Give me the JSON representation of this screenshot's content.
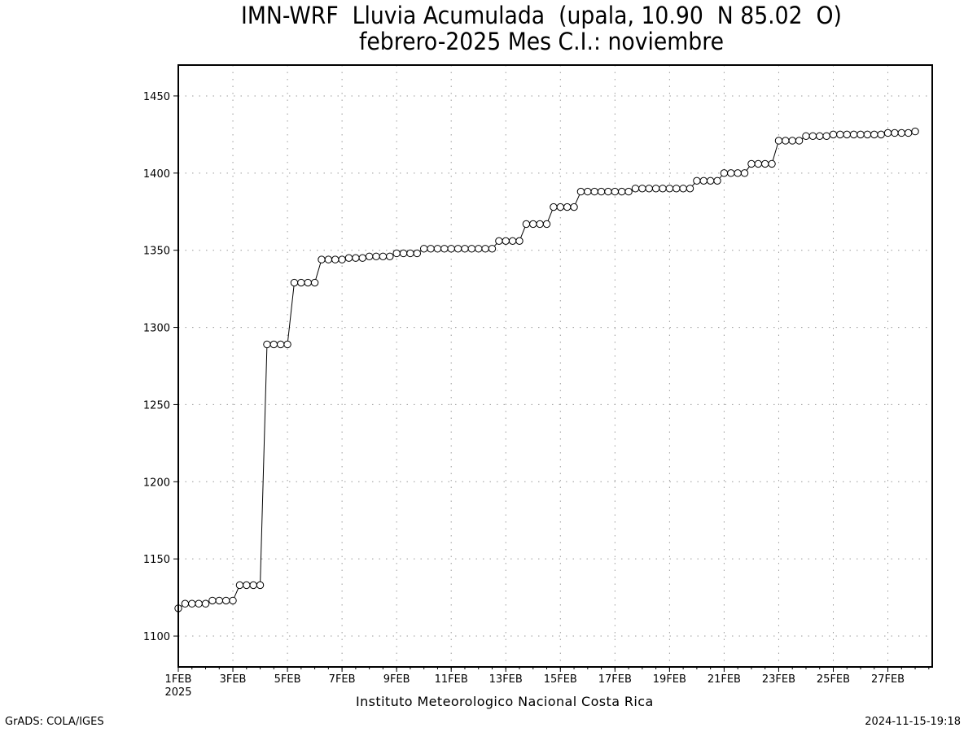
{
  "title_line1": "IMN-WRF  Lluvia Acumulada  (upala, 10.90  N 85.02  O)",
  "title_line2": "febrero-2025 Mes C.I.: noviembre",
  "footer_institution": "Instituto Meteorologico Nacional Costa Rica",
  "credit_left": "GrADS: COLA/IGES",
  "credit_right": "2024-11-15-19:18",
  "chart_data": {
    "type": "line",
    "marker": "open-circle",
    "ylim": [
      1080,
      1470
    ],
    "xlim": [
      1,
      28.625
    ],
    "yticks": [
      1100,
      1150,
      1200,
      1250,
      1300,
      1350,
      1400,
      1450
    ],
    "xticks": [
      {
        "day": 1,
        "label": "1FEB",
        "sublabel": "2025"
      },
      {
        "day": 3,
        "label": "3FEB"
      },
      {
        "day": 5,
        "label": "5FEB"
      },
      {
        "day": 7,
        "label": "7FEB"
      },
      {
        "day": 9,
        "label": "9FEB"
      },
      {
        "day": 11,
        "label": "11FEB"
      },
      {
        "day": 13,
        "label": "13FEB"
      },
      {
        "day": 15,
        "label": "15FEB"
      },
      {
        "day": 17,
        "label": "17FEB"
      },
      {
        "day": 19,
        "label": "19FEB"
      },
      {
        "day": 21,
        "label": "21FEB"
      },
      {
        "day": 23,
        "label": "23FEB"
      },
      {
        "day": 25,
        "label": "25FEB"
      },
      {
        "day": 27,
        "label": "27FEB"
      }
    ],
    "grid": true,
    "series": [
      {
        "day_start": 1,
        "step_days": 0.25,
        "values": [
          1118,
          1121,
          1121,
          1121,
          1121,
          1123,
          1123,
          1123,
          1123,
          1133,
          1133,
          1133,
          1133,
          1289,
          1289,
          1289,
          1289,
          1329,
          1329,
          1329,
          1329,
          1344,
          1344,
          1344,
          1344,
          1345,
          1345,
          1345,
          1346,
          1346,
          1346,
          1346,
          1348,
          1348,
          1348,
          1348,
          1351,
          1351,
          1351,
          1351,
          1351,
          1351,
          1351,
          1351,
          1351,
          1351,
          1351,
          1356,
          1356,
          1356,
          1356,
          1367,
          1367,
          1367,
          1367,
          1378,
          1378,
          1378,
          1378,
          1388,
          1388,
          1388,
          1388,
          1388,
          1388,
          1388,
          1388,
          1390,
          1390,
          1390,
          1390,
          1390,
          1390,
          1390,
          1390,
          1390,
          1395,
          1395,
          1395,
          1395,
          1400,
          1400,
          1400,
          1400,
          1406,
          1406,
          1406,
          1406,
          1421,
          1421,
          1421,
          1421,
          1424,
          1424,
          1424,
          1424,
          1425,
          1425,
          1425,
          1425,
          1425,
          1425,
          1425,
          1425,
          1426,
          1426,
          1426,
          1426,
          1427
        ]
      }
    ]
  }
}
